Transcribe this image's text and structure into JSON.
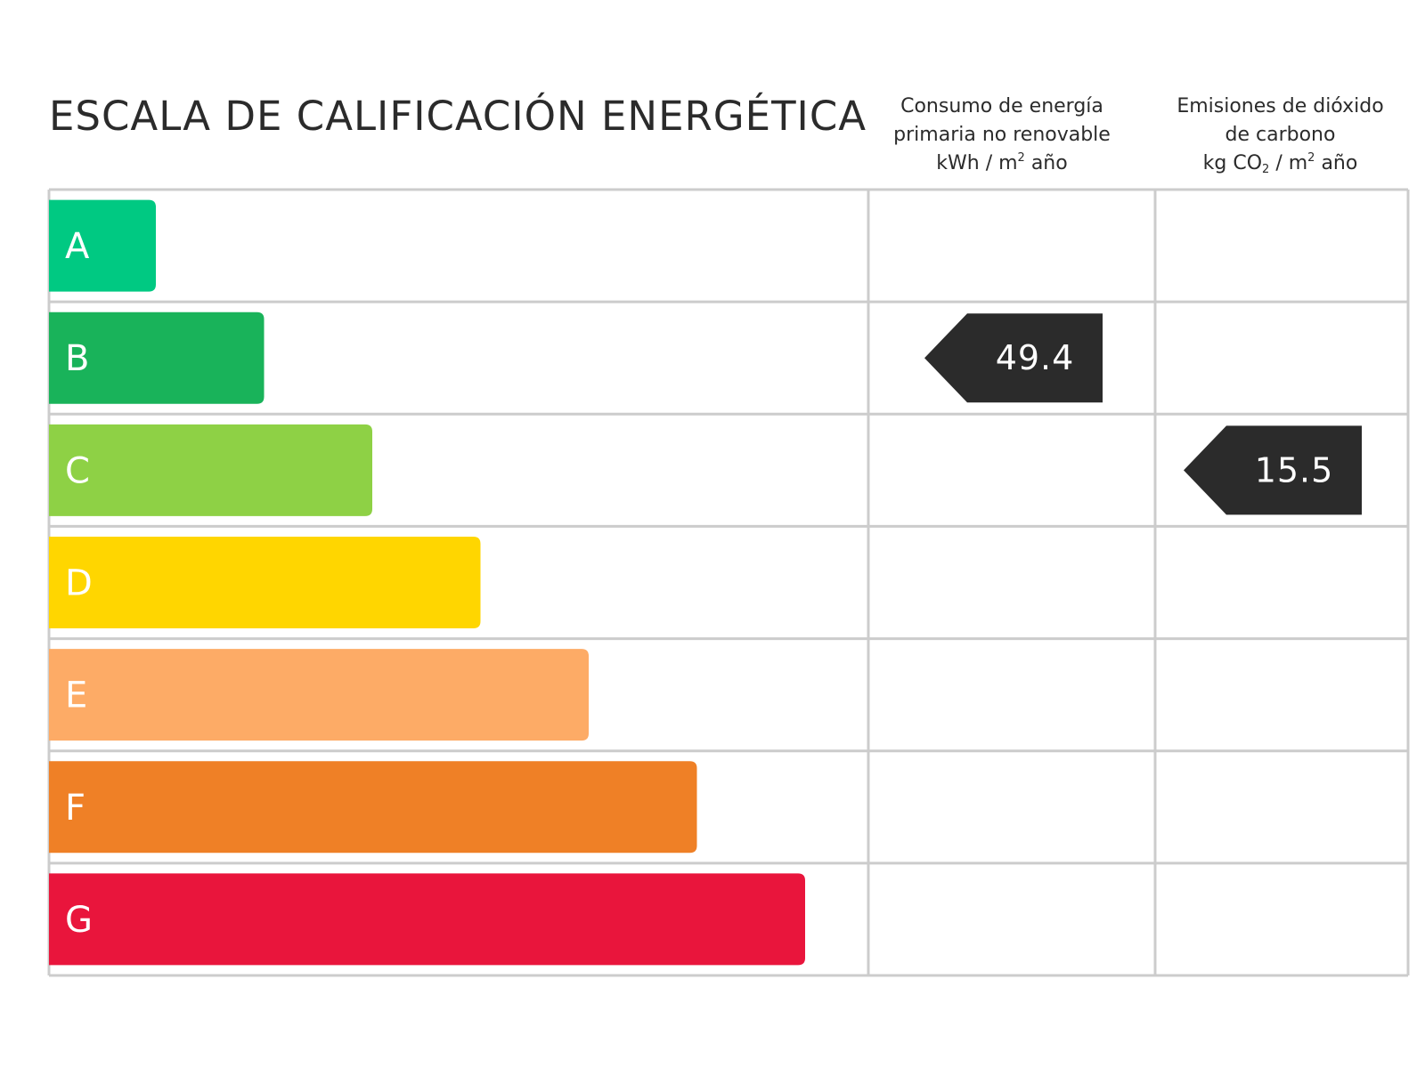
{
  "title": "ESCALA DE CALIFICACIÓN ENERGÉTICA",
  "columns": {
    "energy": {
      "line1": "Consumo de energía",
      "line2": "primaria no renovable",
      "unit_prefix": "kWh / m",
      "unit_sup": "2",
      "unit_suffix": " año"
    },
    "co2": {
      "line1": "Emisiones de dióxido",
      "line2": "de carbono",
      "unit_prefix": "kg CO",
      "unit_sub": "2",
      "unit_mid": " / m",
      "unit_sup": "2",
      "unit_suffix": " año"
    }
  },
  "chart_data": {
    "type": "bar",
    "categories": [
      "A",
      "B",
      "C",
      "D",
      "E",
      "F",
      "G"
    ],
    "colors": [
      "#00c982",
      "#19b35a",
      "#8ed145",
      "#ffd600",
      "#fdab66",
      "#ef8026",
      "#e9153c"
    ],
    "indicators": [
      {
        "column": "energy",
        "category": "B",
        "value": "49.4"
      },
      {
        "column": "co2",
        "category": "C",
        "value": "15.5"
      }
    ],
    "grid_color": "#cccccc",
    "tag_color": "#2b2b2b"
  }
}
